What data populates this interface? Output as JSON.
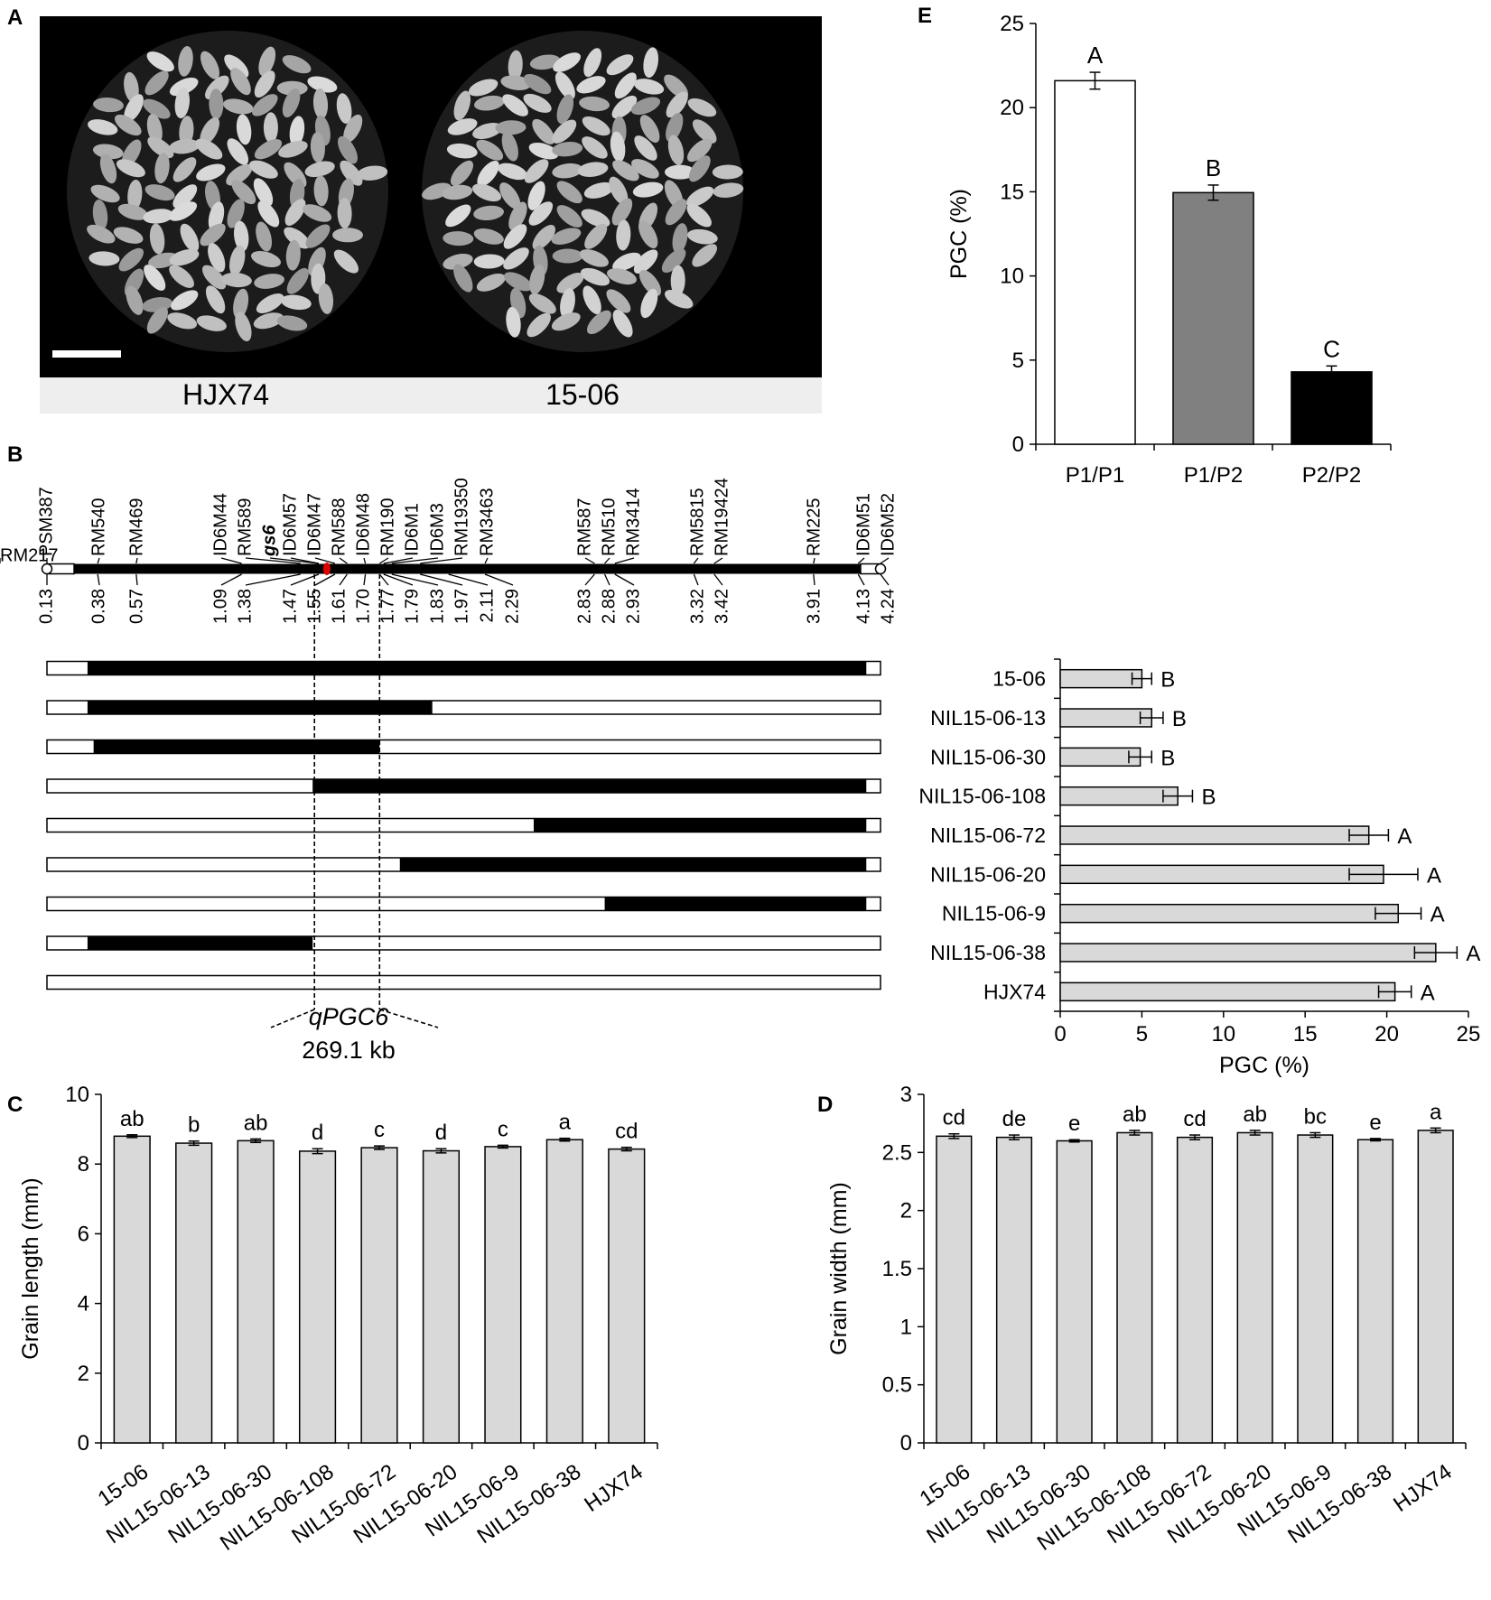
{
  "panel_letters": {
    "A": "A",
    "B": "B",
    "C": "C",
    "D": "D",
    "E": "E"
  },
  "panel_a": {
    "labels": [
      "HJX74",
      "15-06"
    ]
  },
  "panel_b_map": {
    "markers": [
      "PSM387",
      "RM540",
      "RM469",
      "ID6M44",
      "RM589",
      "gs6",
      "ID6M57",
      "ID6M47",
      "RM588",
      "ID6M48",
      "RM190",
      "ID6M1",
      "ID6M3",
      "RM19350",
      "RM3463",
      "RM587",
      "RM510",
      "RM3414",
      "RM5815",
      "RM19424",
      "RM225",
      "ID6M51",
      "ID6M52",
      "RM217"
    ],
    "positions": [
      "0.13",
      "0.38",
      "0.57",
      "1.09",
      "1.38",
      "1.47",
      "1.55",
      "1.61",
      "1.70",
      "1.77",
      "1.79",
      "1.83",
      "1.97",
      "2.11",
      "2.29",
      "2.83",
      "2.88",
      "2.93",
      "3.32",
      "3.42",
      "3.91",
      "4.13",
      "4.24"
    ],
    "qtl_name": "qPGC6",
    "qtl_size": "269.1 kb",
    "lines": [
      {
        "name": "15-06",
        "black": [
          0.33,
          4.17
        ]
      },
      {
        "name": "NIL15-06-13",
        "black": [
          0.33,
          2.03
        ]
      },
      {
        "name": "NIL15-06-30",
        "black": [
          0.36,
          1.77
        ]
      },
      {
        "name": "NIL15-06-108",
        "black": [
          1.44,
          4.17
        ]
      },
      {
        "name": "NIL15-06-72",
        "black": [
          2.53,
          4.17
        ]
      },
      {
        "name": "NIL15-06-20",
        "black": [
          1.87,
          4.17
        ]
      },
      {
        "name": "NIL15-06-9",
        "black": [
          2.88,
          4.17
        ]
      },
      {
        "name": "NIL15-06-38",
        "black": [
          0.33,
          1.44
        ]
      },
      {
        "name": "HJX74",
        "black": null
      }
    ]
  },
  "chart_data": [
    {
      "id": "E",
      "type": "bar",
      "categories": [
        "P1/P1",
        "P1/P2",
        "P2/P2"
      ],
      "values": [
        21.6,
        14.95,
        4.3
      ],
      "errors": [
        0.5,
        0.45,
        0.35
      ],
      "letters": [
        "A",
        "B",
        "C"
      ],
      "colors": [
        "#ffffff",
        "#808080",
        "#000000"
      ],
      "ylabel": "PGC (%)",
      "ylim": [
        0,
        25
      ],
      "yticks": [
        "0",
        "5",
        "10",
        "15",
        "20",
        "25"
      ]
    },
    {
      "id": "B-bar",
      "type": "bar",
      "orientation": "horizontal",
      "categories": [
        "15-06",
        "NIL15-06-13",
        "NIL15-06-30",
        "NIL15-06-108",
        "NIL15-06-72",
        "NIL15-06-20",
        "NIL15-06-9",
        "NIL15-06-38",
        "HJX74"
      ],
      "values": [
        5.0,
        5.6,
        4.9,
        7.2,
        18.9,
        19.8,
        20.7,
        23.0,
        20.5
      ],
      "errors": [
        0.6,
        0.7,
        0.7,
        0.9,
        1.2,
        2.1,
        1.4,
        1.3,
        1.0
      ],
      "letters": [
        "B",
        "B",
        "B",
        "B",
        "A",
        "A",
        "A",
        "A",
        "A"
      ],
      "color": "#d9d9d9",
      "xlabel": "PGC (%)",
      "xlim": [
        0,
        25
      ],
      "xticks": [
        "0",
        "5",
        "10",
        "15",
        "20",
        "25"
      ]
    },
    {
      "id": "C",
      "type": "bar",
      "categories": [
        "15-06",
        "NIL15-06-13",
        "NIL15-06-30",
        "NIL15-06-108",
        "NIL15-06-72",
        "NIL15-06-20",
        "NIL15-06-9",
        "NIL15-06-38",
        "HJX74"
      ],
      "values": [
        8.8,
        8.6,
        8.67,
        8.37,
        8.47,
        8.38,
        8.5,
        8.7,
        8.43
      ],
      "errors": [
        0.04,
        0.06,
        0.05,
        0.07,
        0.05,
        0.06,
        0.04,
        0.04,
        0.05
      ],
      "letters": [
        "ab",
        "b",
        "ab",
        "d",
        "c",
        "d",
        "c",
        "a",
        "cd"
      ],
      "color": "#d9d9d9",
      "ylabel": "Grain length (mm)",
      "ylim": [
        0,
        10
      ],
      "yticks": [
        "0",
        "2",
        "4",
        "6",
        "8",
        "10"
      ]
    },
    {
      "id": "D",
      "type": "bar",
      "categories": [
        "15-06",
        "NIL15-06-13",
        "NIL15-06-30",
        "NIL15-06-108",
        "NIL15-06-72",
        "NIL15-06-20",
        "NIL15-06-9",
        "NIL15-06-38",
        "HJX74"
      ],
      "values": [
        2.64,
        2.63,
        2.6,
        2.67,
        2.63,
        2.67,
        2.65,
        2.61,
        2.69
      ],
      "errors": [
        0.02,
        0.02,
        0.01,
        0.02,
        0.02,
        0.02,
        0.02,
        0.01,
        0.02
      ],
      "letters": [
        "cd",
        "de",
        "e",
        "ab",
        "cd",
        "ab",
        "bc",
        "e",
        "a"
      ],
      "color": "#d9d9d9",
      "ylabel": "Grain width (mm)",
      "ylim": [
        0,
        3
      ],
      "yticks": [
        "0",
        "0.5",
        "1",
        "1.5",
        "2",
        "2.5",
        "3"
      ]
    }
  ]
}
